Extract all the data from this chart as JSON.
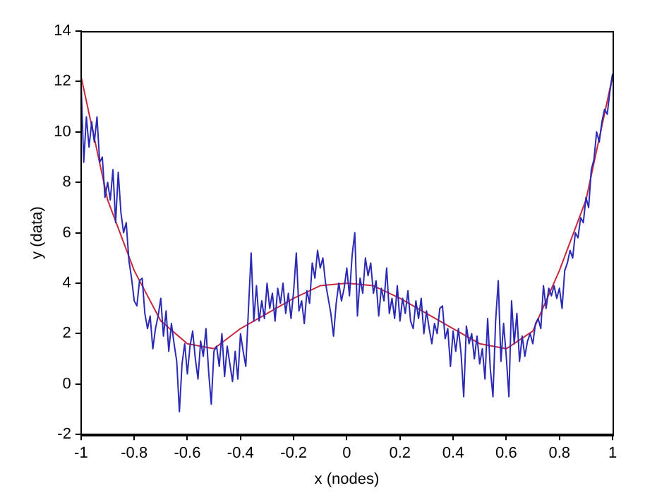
{
  "chart_data": {
    "type": "line",
    "xlabel": "x (nodes)",
    "ylabel": "y (data)",
    "xlim": [
      -1,
      1
    ],
    "xticks": [
      -1,
      -0.8,
      -0.6,
      -0.4,
      -0.2,
      0,
      0.2,
      0.4,
      0.6,
      0.8,
      1
    ],
    "ylim": [
      -2,
      14
    ],
    "yticks": [
      -2,
      0,
      2,
      4,
      6,
      8,
      10,
      12,
      14
    ],
    "grid": false,
    "legend": false,
    "marker": "none",
    "line_style": "solid",
    "series": [
      {
        "color": "#2a2ab4",
        "x": [
          -1,
          -0.99,
          -0.98,
          -0.97,
          -0.96,
          -0.95,
          -0.94,
          -0.93,
          -0.92,
          -0.91,
          -0.9,
          -0.89,
          -0.88,
          -0.87,
          -0.86,
          -0.85,
          -0.84,
          -0.83,
          -0.82,
          -0.81,
          -0.8,
          -0.79,
          -0.78,
          -0.77,
          -0.76,
          -0.75,
          -0.74,
          -0.73,
          -0.72,
          -0.71,
          -0.7,
          -0.69,
          -0.68,
          -0.67,
          -0.66,
          -0.65,
          -0.64,
          -0.63,
          -0.62,
          -0.61,
          -0.6,
          -0.59,
          -0.58,
          -0.57,
          -0.56,
          -0.55,
          -0.54,
          -0.53,
          -0.52,
          -0.51,
          -0.5,
          -0.49,
          -0.48,
          -0.47,
          -0.46,
          -0.45,
          -0.44,
          -0.43,
          -0.42,
          -0.41,
          -0.4,
          -0.39,
          -0.38,
          -0.37,
          -0.36,
          -0.35,
          -0.34,
          -0.33,
          -0.32,
          -0.31,
          -0.3,
          -0.29,
          -0.28,
          -0.27,
          -0.26,
          -0.25,
          -0.24,
          -0.23,
          -0.22,
          -0.21,
          -0.2,
          -0.19,
          -0.18,
          -0.17,
          -0.16,
          -0.15,
          -0.14,
          -0.13,
          -0.12,
          -0.11,
          -0.1,
          -0.09,
          -0.08,
          -0.07,
          -0.06,
          -0.05,
          -0.04,
          -0.03,
          -0.02,
          -0.01,
          0,
          0.01,
          0.02,
          0.03,
          0.04,
          0.05,
          0.06,
          0.07,
          0.08,
          0.09,
          0.1,
          0.11,
          0.12,
          0.13,
          0.14,
          0.15,
          0.16,
          0.17,
          0.18,
          0.19,
          0.2,
          0.21,
          0.22,
          0.23,
          0.24,
          0.25,
          0.26,
          0.27,
          0.28,
          0.29,
          0.3,
          0.31,
          0.32,
          0.33,
          0.34,
          0.35,
          0.36,
          0.37,
          0.38,
          0.39,
          0.4,
          0.41,
          0.42,
          0.43,
          0.44,
          0.45,
          0.46,
          0.47,
          0.48,
          0.49,
          0.5,
          0.51,
          0.52,
          0.53,
          0.54,
          0.55,
          0.56,
          0.57,
          0.58,
          0.59,
          0.6,
          0.61,
          0.62,
          0.63,
          0.64,
          0.65,
          0.66,
          0.67,
          0.68,
          0.69,
          0.7,
          0.71,
          0.72,
          0.73,
          0.74,
          0.75,
          0.76,
          0.77,
          0.78,
          0.79,
          0.8,
          0.81,
          0.82,
          0.83,
          0.84,
          0.85,
          0.86,
          0.87,
          0.88,
          0.89,
          0.9,
          0.91,
          0.92,
          0.93,
          0.94,
          0.95,
          0.96,
          0.97,
          0.98,
          0.99,
          1
        ],
        "values": [
          12.0,
          8.8,
          10.6,
          9.4,
          10.4,
          9.6,
          10.6,
          8.8,
          9.0,
          7.4,
          8.0,
          7.3,
          8.5,
          6.4,
          8.4,
          6.8,
          6.0,
          6.4,
          4.9,
          4.2,
          3.3,
          3.1,
          4.1,
          4.2,
          2.8,
          2.2,
          2.7,
          1.4,
          2.2,
          2.7,
          3.4,
          1.9,
          2.9,
          1.3,
          2.4,
          1.6,
          0.9,
          -1.1,
          0.8,
          1.6,
          0.4,
          1.5,
          2.1,
          1.0,
          0.2,
          1.7,
          1.1,
          2.2,
          0.5,
          -0.8,
          1.3,
          1.5,
          0.7,
          2.0,
          0.3,
          1.5,
          0.8,
          0.1,
          1.3,
          0.2,
          2.0,
          1.3,
          0.7,
          3.0,
          5.2,
          2.5,
          3.9,
          2.5,
          3.3,
          2.6,
          4.0,
          3.0,
          3.6,
          2.5,
          3.8,
          3.2,
          4.0,
          2.8,
          3.6,
          2.6,
          3.7,
          5.2,
          2.9,
          3.3,
          2.4,
          3.7,
          3.2,
          4.8,
          4.2,
          5.3,
          4.6,
          5.0,
          4.0,
          3.4,
          2.8,
          1.9,
          3.2,
          4.0,
          3.3,
          3.8,
          4.6,
          3.5,
          5.1,
          6.0,
          2.7,
          4.2,
          3.6,
          5.0,
          4.3,
          4.8,
          3.6,
          4.1,
          2.7,
          3.8,
          3.3,
          4.6,
          2.8,
          3.4,
          2.6,
          3.9,
          2.5,
          3.4,
          2.8,
          3.7,
          2.5,
          2.2,
          3.3,
          2.6,
          3.4,
          2.0,
          2.9,
          2.2,
          1.6,
          2.4,
          2.0,
          3.0,
          3.1,
          1.8,
          2.2,
          0.7,
          2.1,
          1.3,
          2.2,
          1.2,
          -0.5,
          2.3,
          1.6,
          2.0,
          1.0,
          1.9,
          0.8,
          1.4,
          0.2,
          2.6,
          0.6,
          -0.5,
          2.5,
          4.1,
          0.9,
          2.4,
          1.1,
          -0.5,
          3.3,
          1.6,
          2.8,
          0.9,
          1.9,
          1.1,
          1.7,
          2.0,
          1.6,
          2.4,
          2.6,
          2.2,
          3.9,
          3.0,
          3.8,
          3.5,
          3.9,
          3.4,
          3.8,
          3.0,
          4.5,
          4.8,
          5.3,
          5.0,
          6.0,
          5.8,
          6.6,
          6.4,
          7.4,
          7.0,
          8.5,
          8.9,
          10.0,
          9.6,
          10.4,
          10.9,
          10.7,
          11.6,
          12.3
        ]
      },
      {
        "color": "#c8283c",
        "x": [
          -1,
          -0.9,
          -0.8,
          -0.7,
          -0.6,
          -0.5,
          -0.4,
          -0.3,
          -0.2,
          -0.1,
          0,
          0.1,
          0.2,
          0.3,
          0.4,
          0.5,
          0.6,
          0.7,
          0.8,
          0.9,
          1
        ],
        "values": [
          12.2,
          7.3,
          4.5,
          2.5,
          1.6,
          1.4,
          2.2,
          2.8,
          3.4,
          3.9,
          4.0,
          3.9,
          3.4,
          2.8,
          2.2,
          1.6,
          1.4,
          2.1,
          4.5,
          7.3,
          12.2
        ]
      }
    ]
  }
}
